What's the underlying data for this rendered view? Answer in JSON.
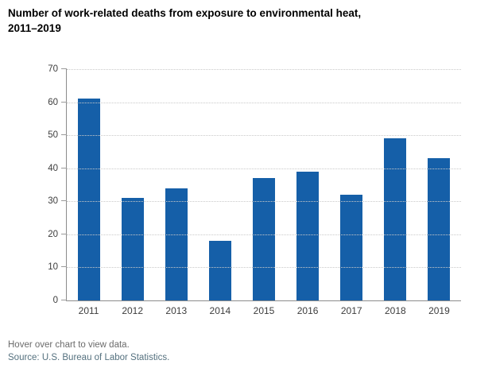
{
  "chart": {
    "title_lines": [
      "Number of work-related deaths from exposure to environmental heat,",
      "2011–2019"
    ]
  },
  "chart_data": {
    "type": "bar",
    "title": "Number of work-related deaths from exposure to environmental heat, 2011–2019",
    "categories": [
      "2011",
      "2012",
      "2013",
      "2014",
      "2015",
      "2016",
      "2017",
      "2018",
      "2019"
    ],
    "values": [
      61,
      31,
      34,
      18,
      37,
      39,
      32,
      49,
      43
    ],
    "xlabel": "",
    "ylabel": "",
    "ylim": [
      0,
      70
    ],
    "ytick_step": 10,
    "grid": "horizontal-dotted",
    "legend": "none",
    "bar_color": "#155FA8"
  },
  "footer": {
    "hover_note": "Hover over chart to view data.",
    "source": "Source: U.S. Bureau of Labor Statistics."
  },
  "colors": {
    "bar": "#155FA8",
    "axis_line": "#8c8c8c",
    "gridline": "#c9c9c9",
    "tick_text": "#3d3d3d",
    "title_text": "#000000",
    "hover_note_text": "#6b6b6b",
    "source_text": "#55717f"
  }
}
